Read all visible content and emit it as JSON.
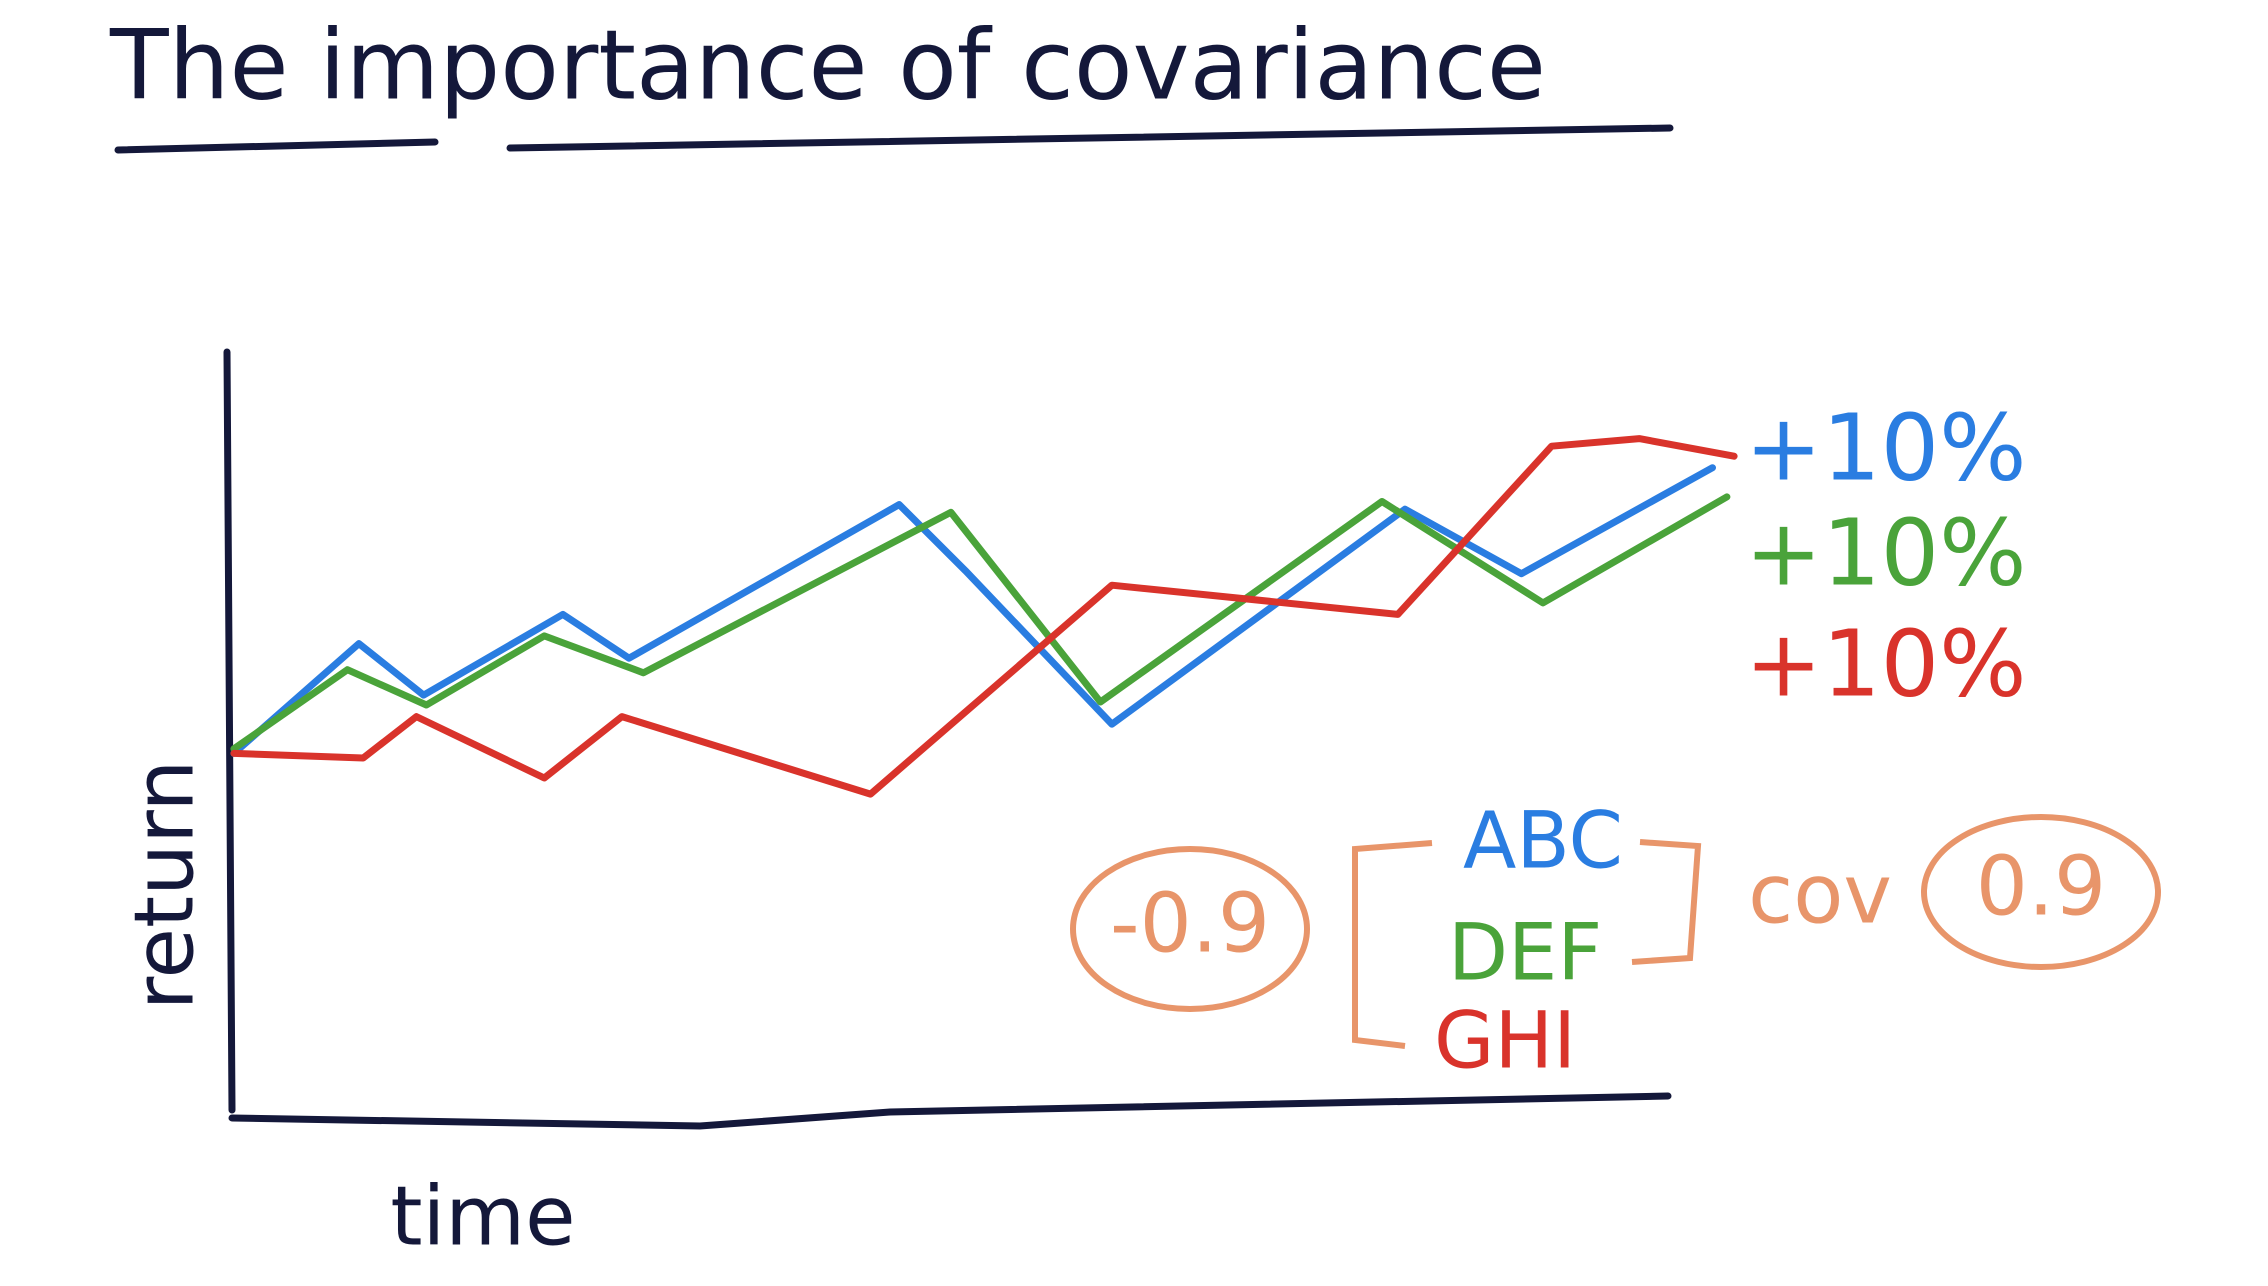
{
  "chart_data": {
    "type": "line",
    "title": "The importance of covariance",
    "x_label": "time",
    "y_label": "return",
    "xlim": [
      0,
      100
    ],
    "ylim": [
      0,
      100
    ],
    "series": [
      {
        "name": "ABC",
        "color": "#2a7de1",
        "end_label": "+10%",
        "x": [
          0.2,
          8.9,
          13.4,
          23.1,
          27.7,
          46.5,
          51.1,
          61.3,
          81.7,
          89.8,
          103.1
        ],
        "values": [
          47.6,
          61.9,
          55.2,
          65.7,
          60.0,
          80.0,
          71.4,
          51.4,
          79.4,
          71.0,
          84.8
        ]
      },
      {
        "name": "DEF",
        "color": "#4aa33a",
        "end_label": "+10%",
        "x": [
          0.2,
          8.1,
          13.6,
          21.8,
          28.7,
          50.1,
          60.5,
          80.1,
          91.3,
          104.1
        ],
        "values": [
          48.2,
          58.5,
          53.9,
          62.9,
          58.1,
          79.0,
          54.3,
          80.4,
          67.2,
          81.0
        ]
      },
      {
        "name": "GHI",
        "color": "#d9332b",
        "end_label": "+10%",
        "x": [
          0.2,
          9.2,
          12.9,
          21.8,
          27.2,
          44.5,
          61.3,
          81.2,
          91.9,
          98.0,
          104.6
        ],
        "values": [
          47.6,
          47.0,
          52.4,
          44.4,
          52.4,
          42.3,
          69.5,
          65.7,
          87.6,
          88.6,
          86.3
        ]
      }
    ],
    "annotations": [
      "-0.9",
      "cov",
      "0.9"
    ],
    "annotation_color": "#e8956a"
  }
}
